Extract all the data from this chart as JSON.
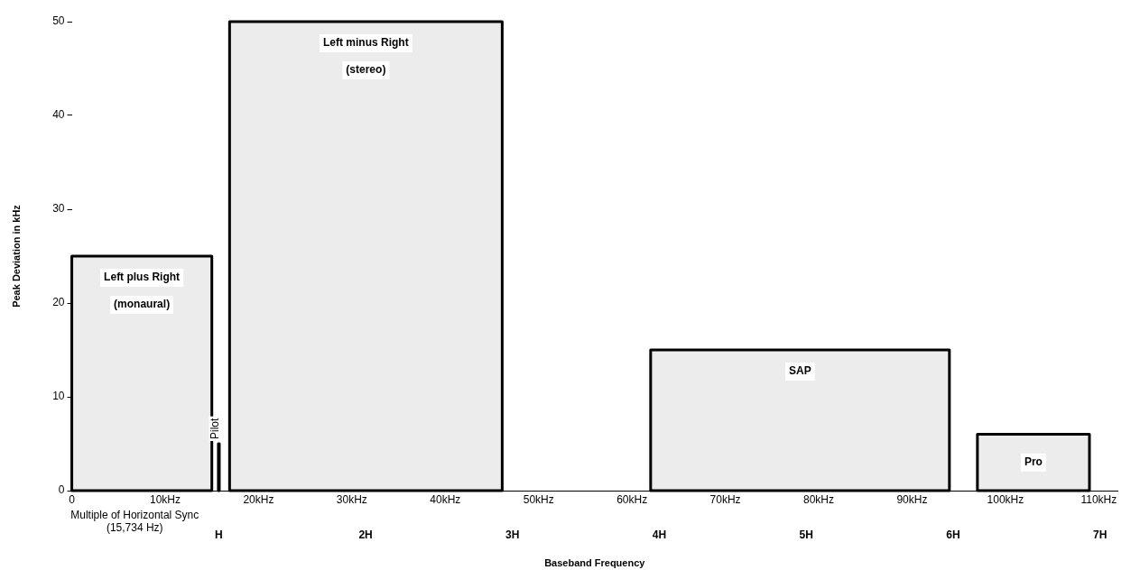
{
  "chart_data": {
    "type": "histogram",
    "bins": [
      0,
      15,
      15.7,
      15.8,
      16.9,
      46.1,
      62,
      94,
      97,
      109
    ],
    "values": [
      25,
      0,
      5,
      0,
      50,
      0,
      15,
      0,
      6
    ],
    "color": "#ececec",
    "xlim": [
      0,
      112
    ],
    "xticks": [
      0,
      {
        "value": 10,
        "label": "10kHz"
      },
      {
        "value": 20,
        "label": "20kHz"
      },
      {
        "value": 30,
        "label": "30kHz"
      },
      {
        "value": 40,
        "label": "40kHz"
      },
      {
        "value": 50,
        "label": "50kHz"
      },
      {
        "value": 60,
        "label": "60kHz"
      },
      {
        "value": 70,
        "label": "70kHz"
      },
      {
        "value": 80,
        "label": "80kHz"
      },
      {
        "value": 90,
        "label": "90kHz"
      },
      {
        "value": 100,
        "label": "100kHz"
      },
      {
        "value": 110,
        "label": "110kHz"
      }
    ],
    "x2lim": [
      0,
      7.118
    ],
    "x2ticks": [
      {
        "value": 1,
        "label": "H"
      },
      {
        "value": 2,
        "label": "2H"
      },
      {
        "value": 3,
        "label": "3H"
      },
      {
        "value": 4,
        "label": "4H"
      },
      {
        "value": 5,
        "label": "5H"
      },
      {
        "value": 6,
        "label": "6H"
      },
      {
        "value": 7,
        "label": "7H"
      }
    ],
    "ylim": [
      0,
      50
    ],
    "yticks": [
      0,
      10,
      20,
      30,
      40,
      50
    ],
    "xlabel": "Baseband Frequency",
    "x2label": "Multiple of Horizontal Sync (15,734 Hz)",
    "ylabel": "Peak Deviation in kHz",
    "grid": false,
    "annotations": [
      {
        "text": "Left plus Right",
        "x": 7.5,
        "y": 25
      },
      "(monaural)",
      {
        "text": "Left minus Right",
        "x": 31.5,
        "y": 50
      },
      "(stereo)",
      {
        "text": "SAP",
        "x": 78,
        "y": 15
      },
      {
        "text": "Pro",
        "x": 103,
        "y": 6
      },
      {
        "text": "Pilot",
        "x": 15.75,
        "y": 5
      }
    ]
  }
}
